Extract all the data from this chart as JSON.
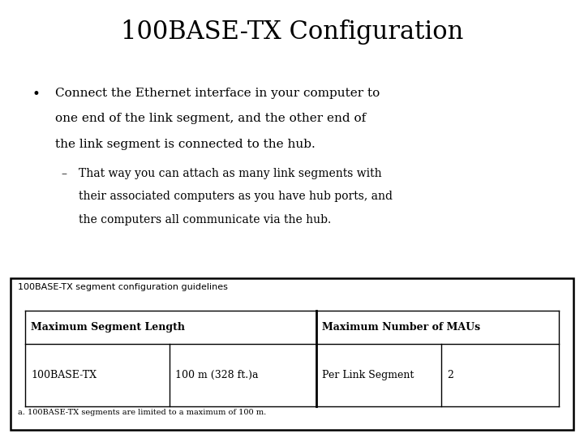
{
  "title": "100BASE-TX Configuration",
  "bullet_lines": [
    "Connect the Ethernet interface in your computer to",
    "one end of the link segment, and the other end of",
    "the link segment is connected to the hub."
  ],
  "sub_lines": [
    "That way you can attach as many link segments with",
    "their associated computers as you have hub ports, and",
    "the computers all communicate via the hub."
  ],
  "table_caption": "100BASE-TX segment configuration guidelines",
  "table_headers": [
    "Maximum Segment Length",
    "Maximum Number of MAUs"
  ],
  "table_row_col1a": "100BASE-TX",
  "table_row_col1b": "100 m (328 ft.)a",
  "table_row_col2a": "Per Link Segment",
  "table_row_col2b": "2",
  "footnote": "a. 100BASE-TX segments are limited to a maximum of 100 m.",
  "bg_color": "#ffffff",
  "text_color": "#000000",
  "title_fontsize": 22,
  "body_fontsize": 11,
  "sub_fontsize": 10,
  "table_header_fontsize": 9,
  "table_data_fontsize": 9,
  "caption_fontsize": 8,
  "footnote_fontsize": 7
}
